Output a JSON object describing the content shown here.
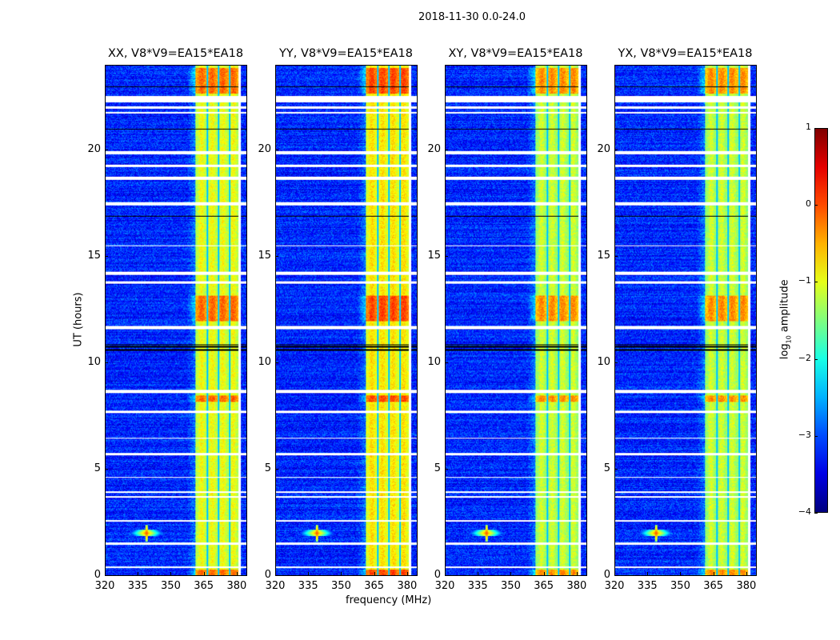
{
  "chart_data": {
    "type": "heatmap",
    "title": "2018-11-30 0.0-24.0",
    "xlabel": "frequency (MHz)",
    "ylabel": "UT (hours)",
    "xlim": [
      320,
      384.4
    ],
    "ylim": [
      0,
      24
    ],
    "xticks": [
      320,
      335,
      350,
      365,
      380
    ],
    "yticks": [
      0,
      5,
      10,
      15,
      20
    ],
    "panels": [
      {
        "title": "XX, V8*V9=EA15*EA18",
        "band_level": -0.7
      },
      {
        "title": "YY, V8*V9=EA15*EA18",
        "band_level": -0.5
      },
      {
        "title": "XY, V8*V9=EA15*EA18",
        "band_level": -0.9
      },
      {
        "title": "YX, V8*V9=EA15*EA18",
        "band_level": -0.9
      }
    ],
    "background_level": -3.1,
    "rfi_band_mhz": [
      361,
      380.5
    ],
    "rfi_gaps_mhz": [
      366.5,
      371.5,
      376.5
    ],
    "bright_hours": [
      [
        8.2,
        8.5
      ],
      [
        12.0,
        13.2
      ],
      [
        22.7,
        23.9
      ],
      [
        0,
        0.3
      ]
    ],
    "spot": {
      "freq_mhz": 338.5,
      "hour": 2.0,
      "level": 0.4
    },
    "flagged_hours": [
      [
        0.35,
        0.45
      ],
      [
        1.45,
        1.55
      ],
      [
        2.55,
        2.62
      ],
      [
        3.65,
        3.75
      ],
      [
        3.9,
        3.97
      ],
      [
        4.6,
        4.66
      ],
      [
        5.65,
        5.78
      ],
      [
        6.45,
        6.5
      ],
      [
        7.65,
        7.75
      ],
      [
        8.6,
        8.75
      ],
      [
        11.6,
        11.75
      ],
      [
        13.75,
        13.85
      ],
      [
        14.15,
        14.3
      ],
      [
        15.5,
        15.55
      ],
      [
        17.45,
        17.6
      ],
      [
        18.65,
        18.8
      ],
      [
        19.25,
        19.35
      ],
      [
        19.85,
        20.0
      ],
      [
        21.75,
        21.85
      ],
      [
        22.0,
        22.1
      ],
      [
        22.3,
        22.6
      ]
    ],
    "dark_hours": [
      [
        10.6,
        10.65
      ],
      [
        10.75,
        10.8
      ],
      [
        10.85,
        10.9
      ],
      [
        16.9,
        16.95
      ],
      [
        21.0,
        21.05
      ],
      [
        23.0,
        23.05
      ]
    ],
    "colorbar": {
      "label": "log10 amplitude",
      "label_main": "log",
      "label_sub": "10",
      "label_rest": " amplitude",
      "range": [
        -4,
        1
      ],
      "ticks": [
        "1",
        "0",
        "−1",
        "−2",
        "−3",
        "−4"
      ],
      "tick_values": [
        1,
        0,
        -1,
        -2,
        -3,
        -4
      ],
      "colormap": "jet"
    }
  }
}
